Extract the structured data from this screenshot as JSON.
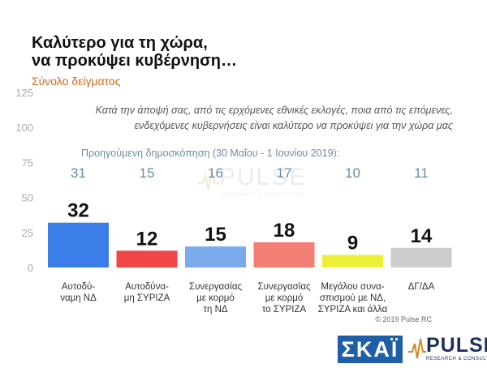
{
  "header": {
    "title_line1": "Καλύτερο για τη χώρα,",
    "title_line2": "να προκύψει κυβέρνηση…",
    "subtitle": "Σύνολο δείγματος"
  },
  "question": {
    "line1": "Κατά την άποψή σας, από τις ερχόμενες εθνικές εκλογές, ποια από τις επόμενες,",
    "line2": "ενδεχόμενες κυβερνήσεις είναι καλύτερο να προκύψει για την χώρα μας"
  },
  "previous_caption": "Προηγούμενη δημοσκόπηση (30 Μαΐου - 1 Ιουνίου 2019):",
  "copyright": "© 2019 Pulse RC",
  "logos": {
    "skai": "ΣΚΑΪ",
    "pulse": "PULSE",
    "pulse_tagline": "RESEARCH & CONSULTING"
  },
  "colors": {
    "axis_text": "#aaaaaa",
    "value_text": "#111111",
    "previous_text": "#6a8ca0",
    "category_text": "#333333"
  },
  "chart_data": {
    "type": "bar",
    "ylim": [
      0,
      125
    ],
    "yticks": [
      0,
      25,
      50,
      75,
      100,
      125
    ],
    "grid": false,
    "categories": [
      [
        "Αυτοδύ-",
        "ναμη ΝΔ"
      ],
      [
        "Αυτοδύνα-",
        "μη ΣΥΡΙΖΑ"
      ],
      [
        "Συνεργασίας",
        "με κορμό",
        "τη ΝΔ"
      ],
      [
        "Συνεργασίας",
        "με κορμό",
        "το ΣΥΡΙΖΑ"
      ],
      [
        "Μεγάλου συνα-",
        "σπισμού με ΝΔ,",
        "ΣΥΡΙΖΑ και άλλα"
      ],
      [
        "ΔΓ/ΔΑ"
      ]
    ],
    "values": [
      32,
      12,
      15,
      18,
      9,
      14
    ],
    "previous_values": [
      31,
      15,
      16,
      17,
      10,
      11
    ],
    "bar_colors": [
      "#3b7de9",
      "#ef4747",
      "#7aa9ee",
      "#f37f73",
      "#eef037",
      "#cccccc"
    ]
  }
}
